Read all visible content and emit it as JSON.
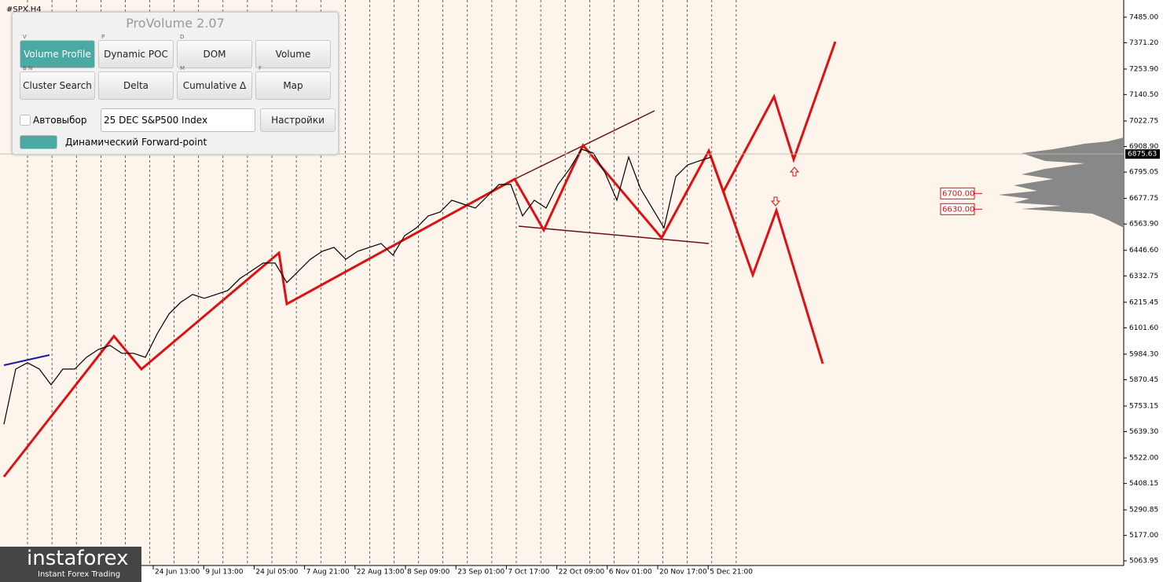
{
  "chart_data": {
    "type": "line",
    "title": "#SPX,H4",
    "series": [
      {
        "name": "SPX",
        "color": "#000000",
        "values": [
          5672,
          5918,
          5946,
          5918,
          5848,
          5918,
          5918,
          5970,
          6005,
          6023,
          5988,
          5988,
          5970,
          6075,
          6163,
          6215,
          6250,
          6233,
          6250,
          6268,
          6320,
          6355,
          6390,
          6390,
          6303,
          6355,
          6407,
          6442,
          6460,
          6407,
          6442,
          6460,
          6477,
          6425,
          6512,
          6547,
          6600,
          6617,
          6670,
          6652,
          6635,
          6687,
          6740,
          6740,
          6600,
          6670,
          6635,
          6740,
          6810,
          6897,
          6880,
          6792,
          6670,
          6862,
          6722,
          6635,
          6547,
          6775,
          6827,
          6845,
          6862
        ]
      }
    ],
    "x_labels": [
      "24 Jun 13:00",
      "9 Jul 13:00",
      "24 Jul 05:00",
      "7 Aug 21:00",
      "22 Aug 13:00",
      "8 Sep 09:00",
      "23 Sep 01:00",
      "7 Oct 17:00",
      "22 Oct 09:00",
      "6 Nov 01:00",
      "20 Nov 17:00",
      "5 Dec 21:00"
    ],
    "ylim": [
      5043,
      7544
    ],
    "yticks": [
      {
        "value": 7485,
        "label": "7485.00"
      },
      {
        "value": 7371.2,
        "label": "7371.20"
      },
      {
        "value": 7253.9,
        "label": "7253.90"
      },
      {
        "value": 7140.5,
        "label": "7140.50"
      },
      {
        "value": 7022.75,
        "label": "7022.75"
      },
      {
        "value": 6908.9,
        "label": "6908.90"
      },
      {
        "value": 6795.05,
        "label": "6795.05"
      },
      {
        "value": 6677.75,
        "label": "6677.75"
      },
      {
        "value": 6563.9,
        "label": "6563.90"
      },
      {
        "value": 6446.6,
        "label": "6446.60"
      },
      {
        "value": 6332.75,
        "label": "6332.75"
      },
      {
        "value": 6215.45,
        "label": "6215.45"
      },
      {
        "value": 6101.6,
        "label": "6101.60"
      },
      {
        "value": 5984.3,
        "label": "5984.30"
      },
      {
        "value": 5870.45,
        "label": "5870.45"
      },
      {
        "value": 5753.15,
        "label": "5753.15"
      },
      {
        "value": 5639.3,
        "label": "5639.30"
      },
      {
        "value": 5522,
        "label": "5522.00"
      },
      {
        "value": 5408.15,
        "label": "5408.15"
      },
      {
        "value": 5290.85,
        "label": "5290.85"
      },
      {
        "value": 5177,
        "label": "5177.00"
      },
      {
        "value": 5063.95,
        "label": "5063.95"
      }
    ],
    "last_price": 6875.63,
    "levels": [
      {
        "value": 6700,
        "label": "6700.00"
      },
      {
        "value": 6630,
        "label": "6630.00"
      }
    ]
  },
  "panel": {
    "title": "ProVolume 2.07",
    "buttons": [
      {
        "key": "V",
        "label": "Volume Profile"
      },
      {
        "key": "P",
        "label": "Dynamic POC"
      },
      {
        "key": "D",
        "label": "DOM"
      },
      {
        "key": "",
        "label": "Volume"
      },
      {
        "key": "B N",
        "label": "Cluster Search"
      },
      {
        "key": "",
        "label": "Delta"
      },
      {
        "key": "M",
        "label": "Cumulative Δ"
      },
      {
        "key": "F",
        "label": "Map"
      }
    ],
    "autoselect": "Автовыбор",
    "instrument": "25 DEC S&P500 Index",
    "settings": "Настройки",
    "forward": "Динамический Forward-point"
  },
  "logo": {
    "name": "instaforex",
    "tagline": "Instant Forex Trading"
  }
}
